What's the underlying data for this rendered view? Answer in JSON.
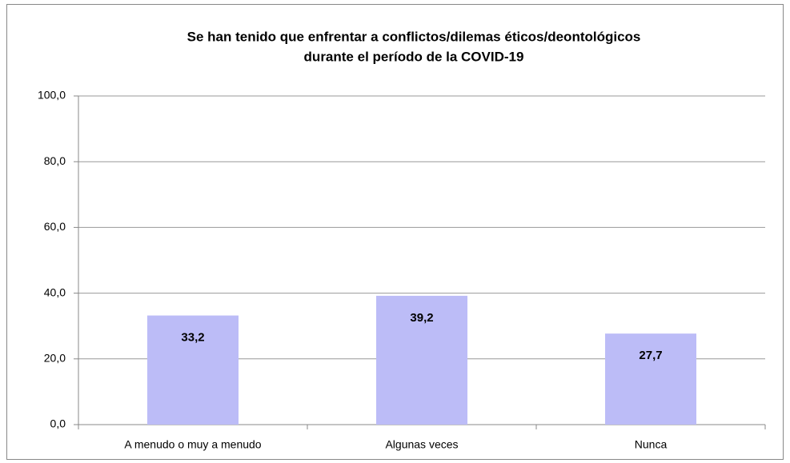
{
  "chart_data": {
    "type": "bar",
    "title": [
      "Se han tenido que enfrentar a conflictos/dilemas éticos/deontológicos",
      "durante el período de la COVID-19"
    ],
    "categories": [
      "A menudo o muy a menudo",
      "Algunas veces",
      "Nunca"
    ],
    "values": [
      33.2,
      39.2,
      27.7
    ],
    "value_labels": [
      "33,2",
      "39,2",
      "27,7"
    ],
    "color": "#bcbcf7",
    "ylim": [
      0,
      100
    ],
    "yticks": [
      {
        "value": 0,
        "label": "0,0"
      },
      {
        "value": 20,
        "label": "20,0"
      },
      {
        "value": 40,
        "label": "40,0"
      },
      {
        "value": 60,
        "label": "60,0"
      },
      {
        "value": 80,
        "label": "80,0"
      },
      {
        "value": 100,
        "label": "100,0"
      }
    ],
    "grid": true
  }
}
